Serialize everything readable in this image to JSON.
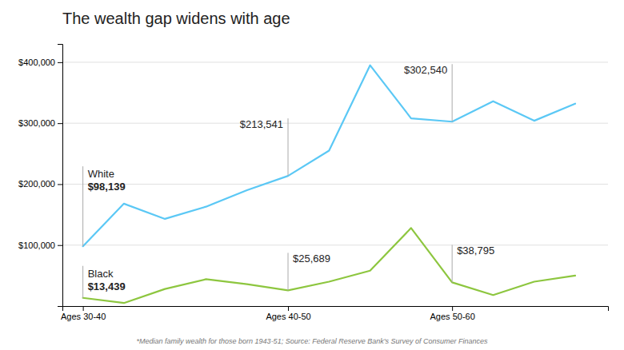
{
  "chart_data": {
    "type": "line",
    "title": "The wealth gap widens with age",
    "footnote": "*Median family wealth for those born 1943-51; Source: Federal Reserve Bank's Survey of Consumer Finances",
    "x": [
      0,
      1,
      2,
      3,
      4,
      5,
      6,
      7,
      8,
      9,
      10,
      11,
      12
    ],
    "series": [
      {
        "name": "White",
        "color": "#5bc8f5",
        "values": [
          98139,
          168000,
          143000,
          163000,
          190000,
          213541,
          255000,
          395000,
          308000,
          302540,
          336000,
          304000,
          332000
        ],
        "value_labels": [
          "$98,139",
          null,
          null,
          null,
          null,
          "$213,541",
          null,
          null,
          null,
          "$302,540",
          null,
          null,
          null
        ]
      },
      {
        "name": "Black",
        "color": "#8dc63f",
        "values": [
          13439,
          5000,
          28000,
          44000,
          36000,
          25689,
          40000,
          58000,
          128000,
          38795,
          18000,
          40000,
          50000
        ],
        "value_labels": [
          "$13,439",
          null,
          null,
          null,
          null,
          "$25,689",
          null,
          null,
          null,
          "$38,795",
          null,
          null,
          null
        ]
      }
    ],
    "xlim": [
      -0.5,
      12.8
    ],
    "xticks": [
      {
        "value": 0,
        "label": "Ages 30-40"
      },
      {
        "value": 5,
        "label": "Ages 40-50"
      },
      {
        "value": 9,
        "label": "Ages 50-60"
      }
    ],
    "ylim": [
      0,
      430000
    ],
    "yticks": [
      {
        "value": 100000,
        "label": "$100,000"
      },
      {
        "value": 200000,
        "label": "$200,000"
      },
      {
        "value": 300000,
        "label": "$300,000"
      },
      {
        "value": 400000,
        "label": "$400,000"
      }
    ],
    "grid": true
  }
}
